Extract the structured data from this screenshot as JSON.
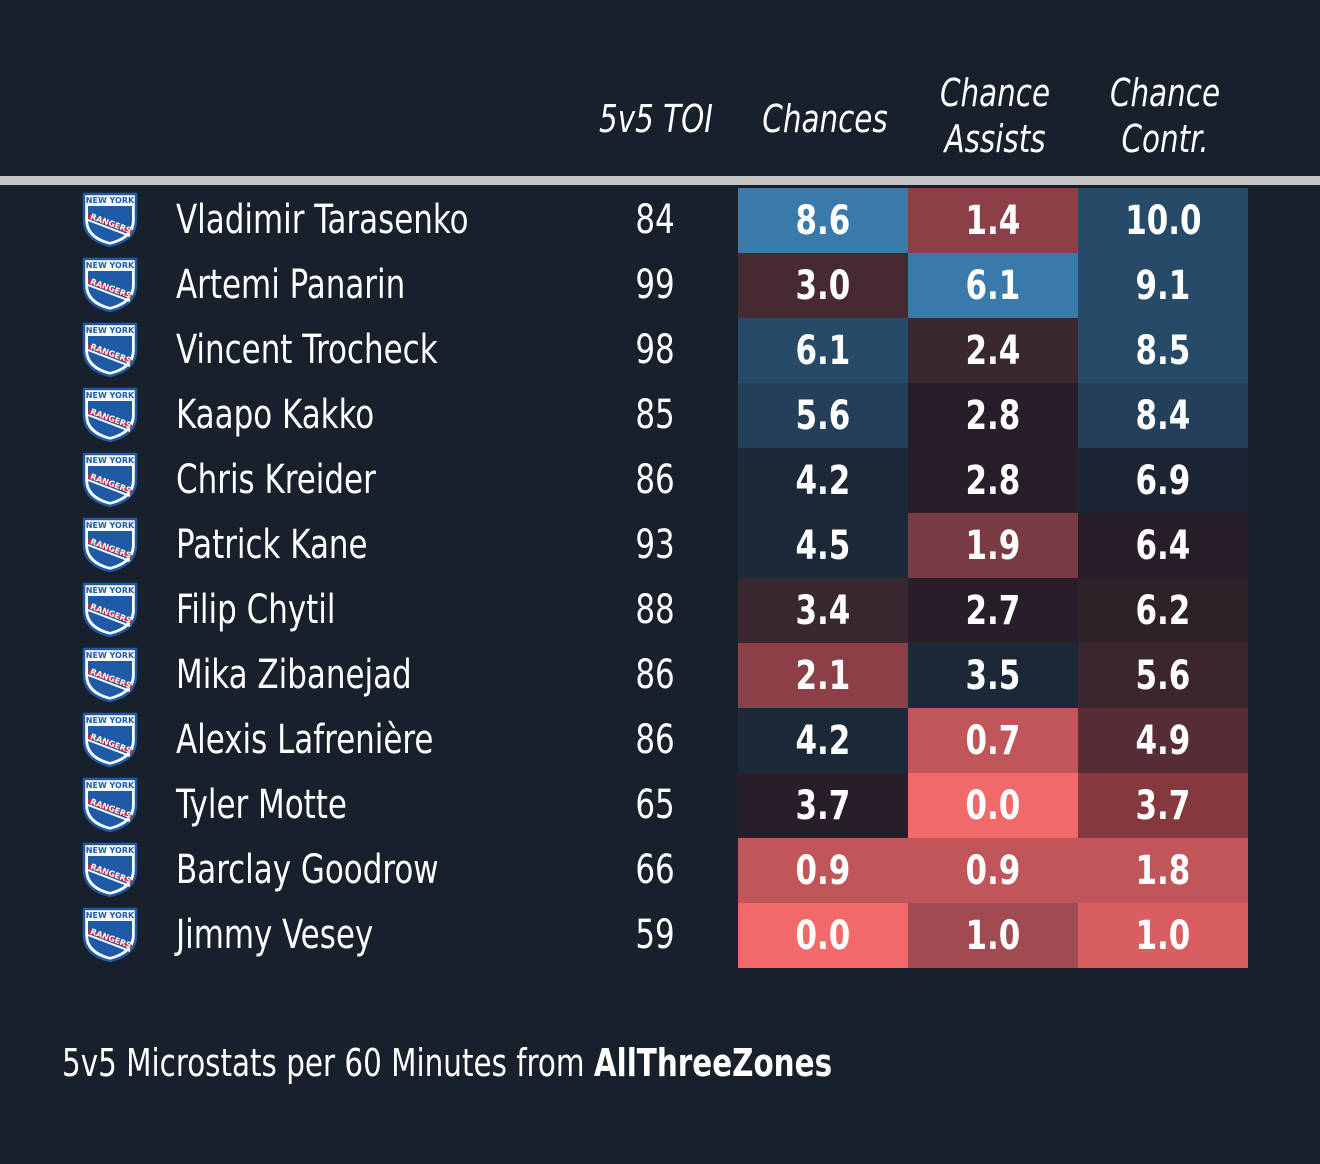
{
  "chart_data": {
    "type": "table",
    "columns": [
      "5v5 TOI",
      "Chances",
      "Chance Assists",
      "Chance Contr."
    ],
    "column_lines": [
      [
        "5v5 TOI"
      ],
      [
        "Chances"
      ],
      [
        "Chance",
        "Assists"
      ],
      [
        "Chance",
        "Contr."
      ]
    ],
    "rows": [
      {
        "player": "Vladimir Tarasenko",
        "toi": "84",
        "chances": "8.6",
        "assists": "1.4",
        "contr": "10.0"
      },
      {
        "player": "Artemi Panarin",
        "toi": "99",
        "chances": "3.0",
        "assists": "6.1",
        "contr": "9.1"
      },
      {
        "player": "Vincent Trocheck",
        "toi": "98",
        "chances": "6.1",
        "assists": "2.4",
        "contr": "8.5"
      },
      {
        "player": "Kaapo Kakko",
        "toi": "85",
        "chances": "5.6",
        "assists": "2.8",
        "contr": "8.4"
      },
      {
        "player": "Chris Kreider",
        "toi": "86",
        "chances": "4.2",
        "assists": "2.8",
        "contr": "6.9"
      },
      {
        "player": "Patrick Kane",
        "toi": "93",
        "chances": "4.5",
        "assists": "1.9",
        "contr": "6.4"
      },
      {
        "player": "Filip Chytil",
        "toi": "88",
        "chances": "3.4",
        "assists": "2.7",
        "contr": "6.2"
      },
      {
        "player": "Mika Zibanejad",
        "toi": "86",
        "chances": "2.1",
        "assists": "3.5",
        "contr": "5.6"
      },
      {
        "player": "Alexis Lafrenière",
        "toi": "86",
        "chances": "4.2",
        "assists": "0.7",
        "contr": "4.9"
      },
      {
        "player": "Tyler Motte",
        "toi": "65",
        "chances": "3.7",
        "assists": "0.0",
        "contr": "3.7"
      },
      {
        "player": "Barclay Goodrow",
        "toi": "66",
        "chances": "0.9",
        "assists": "0.9",
        "contr": "1.8"
      },
      {
        "player": "Jimmy Vesey",
        "toi": "59",
        "chances": "0.0",
        "assists": "1.0",
        "contr": "1.0"
      }
    ],
    "cell_colors": [
      [
        "#3a7aaa",
        "#8b3f47",
        "#274a68"
      ],
      [
        "#472a31",
        "#3a7aaa",
        "#274a68"
      ],
      [
        "#274a68",
        "#3a2830",
        "#274a68"
      ],
      [
        "#243f5a",
        "#281e29",
        "#243f5a"
      ],
      [
        "#1a2837",
        "#281e29",
        "#1c2533"
      ],
      [
        "#1a2837",
        "#7a3a43",
        "#281e29"
      ],
      [
        "#3a2830",
        "#281e29",
        "#2e2128"
      ],
      [
        "#8b3f47",
        "#1a2837",
        "#3b2630"
      ],
      [
        "#1a2837",
        "#c0555a",
        "#562c35"
      ],
      [
        "#281e29",
        "#f06a6a",
        "#85393f"
      ],
      [
        "#c0555a",
        "#c0555a",
        "#c0555a"
      ],
      [
        "#f06a6a",
        "#a14a51",
        "#d95e61"
      ]
    ]
  },
  "colors": {
    "background": "#17202b",
    "divider": "#c5c5c5",
    "text": "#ffffff"
  },
  "logo": {
    "icon": "new-york-rangers-shield",
    "top": "NEW YORK",
    "bottom": "RANGERS"
  },
  "footer": {
    "prefix": "5v5 Microstats per 60 Minutes from ",
    "brand": "AllThreeZones"
  }
}
